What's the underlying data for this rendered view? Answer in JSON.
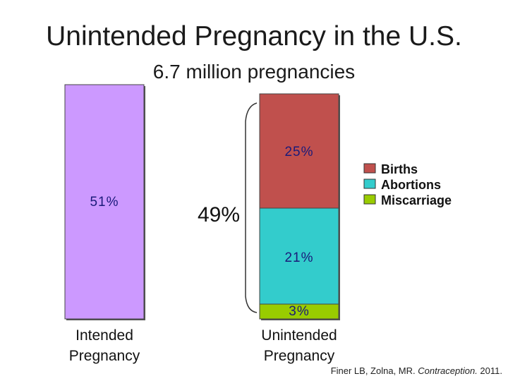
{
  "title": "Unintended Pregnancy in the U.S.",
  "subtitle": "6.7 million pregnancies",
  "chart_data": {
    "type": "bar",
    "stacked": true,
    "ylim": [
      0,
      100
    ],
    "colors": {
      "intended": "#cc99ff",
      "births": "#c0504d",
      "abortions": "#33cccc",
      "miscarriage": "#99cc00"
    },
    "bars": [
      {
        "category": "Intended Pregnancy",
        "segments": [
          {
            "name": "Intended",
            "value": 51,
            "label": "51%"
          }
        ]
      },
      {
        "category": "Unintended Pregnancy",
        "segments": [
          {
            "name": "Miscarriage",
            "value": 3,
            "label": "3%"
          },
          {
            "name": "Abortions",
            "value": 21,
            "label": "21%"
          },
          {
            "name": "Births",
            "value": 25,
            "label": "25%"
          }
        ]
      }
    ],
    "bracket_label": "49%",
    "legend": [
      "Births",
      "Abortions",
      "Miscarriage"
    ],
    "legend_position": "right"
  },
  "category_labels": {
    "intended_line1": "Intended",
    "intended_line2": "Pregnancy",
    "unintended_line1": "Unintended",
    "unintended_line2": "Pregnancy"
  },
  "citation": {
    "authors": "Finer LB, Zolna, MR. ",
    "journal": "Contraception.",
    "year": " 2011."
  }
}
